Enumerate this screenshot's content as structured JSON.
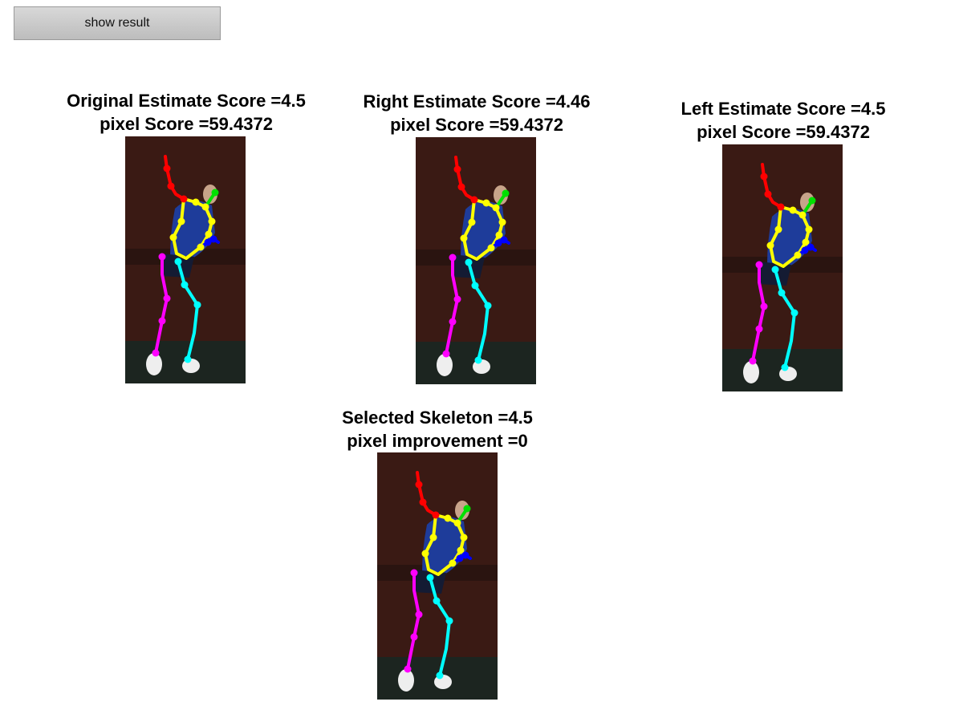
{
  "toolbar": {
    "show_result_label": "show result"
  },
  "panels": {
    "original": {
      "line1": "Original Estimate Score =4.5",
      "line2": "pixel Score =59.4372"
    },
    "right": {
      "line1": "Right Estimate Score =4.46",
      "line2": "pixel Score =59.4372"
    },
    "left": {
      "line1": "Left Estimate Score =4.5",
      "line2": "pixel Score =59.4372"
    },
    "selected": {
      "line1": "Selected Skeleton =4.5",
      "line2": "pixel improvement =0"
    }
  },
  "skeleton_colors": {
    "head": "#00e000",
    "torso": "#ffff00",
    "right_arm": "#ff0000",
    "left_arm": "#0000ff",
    "right_leg": "#ff00ff",
    "left_leg": "#00ffff"
  }
}
